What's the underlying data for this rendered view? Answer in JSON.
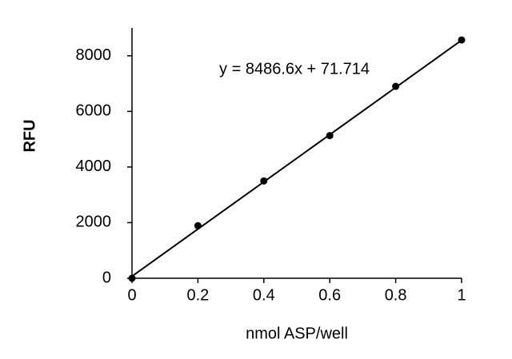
{
  "chart_data": {
    "type": "scatter",
    "x_label": "nmol ASP/well",
    "y_label": "RFU",
    "annotation": "y = 8486.6x + 71.714",
    "x": [
      0,
      0.2,
      0.4,
      0.6,
      0.8,
      1
    ],
    "values": [
      0,
      1890,
      3500,
      5130,
      6900,
      8570
    ],
    "color": "#000000",
    "trendline": {
      "slope": 8486.6,
      "intercept": 71.714
    },
    "xlim": [
      0,
      1
    ],
    "xticks": [
      0,
      0.2,
      0.4,
      0.6,
      0.8,
      1
    ],
    "ylim": [
      0,
      9000
    ],
    "yticks": [
      0,
      2000,
      4000,
      6000,
      8000
    ],
    "grid": false
  }
}
